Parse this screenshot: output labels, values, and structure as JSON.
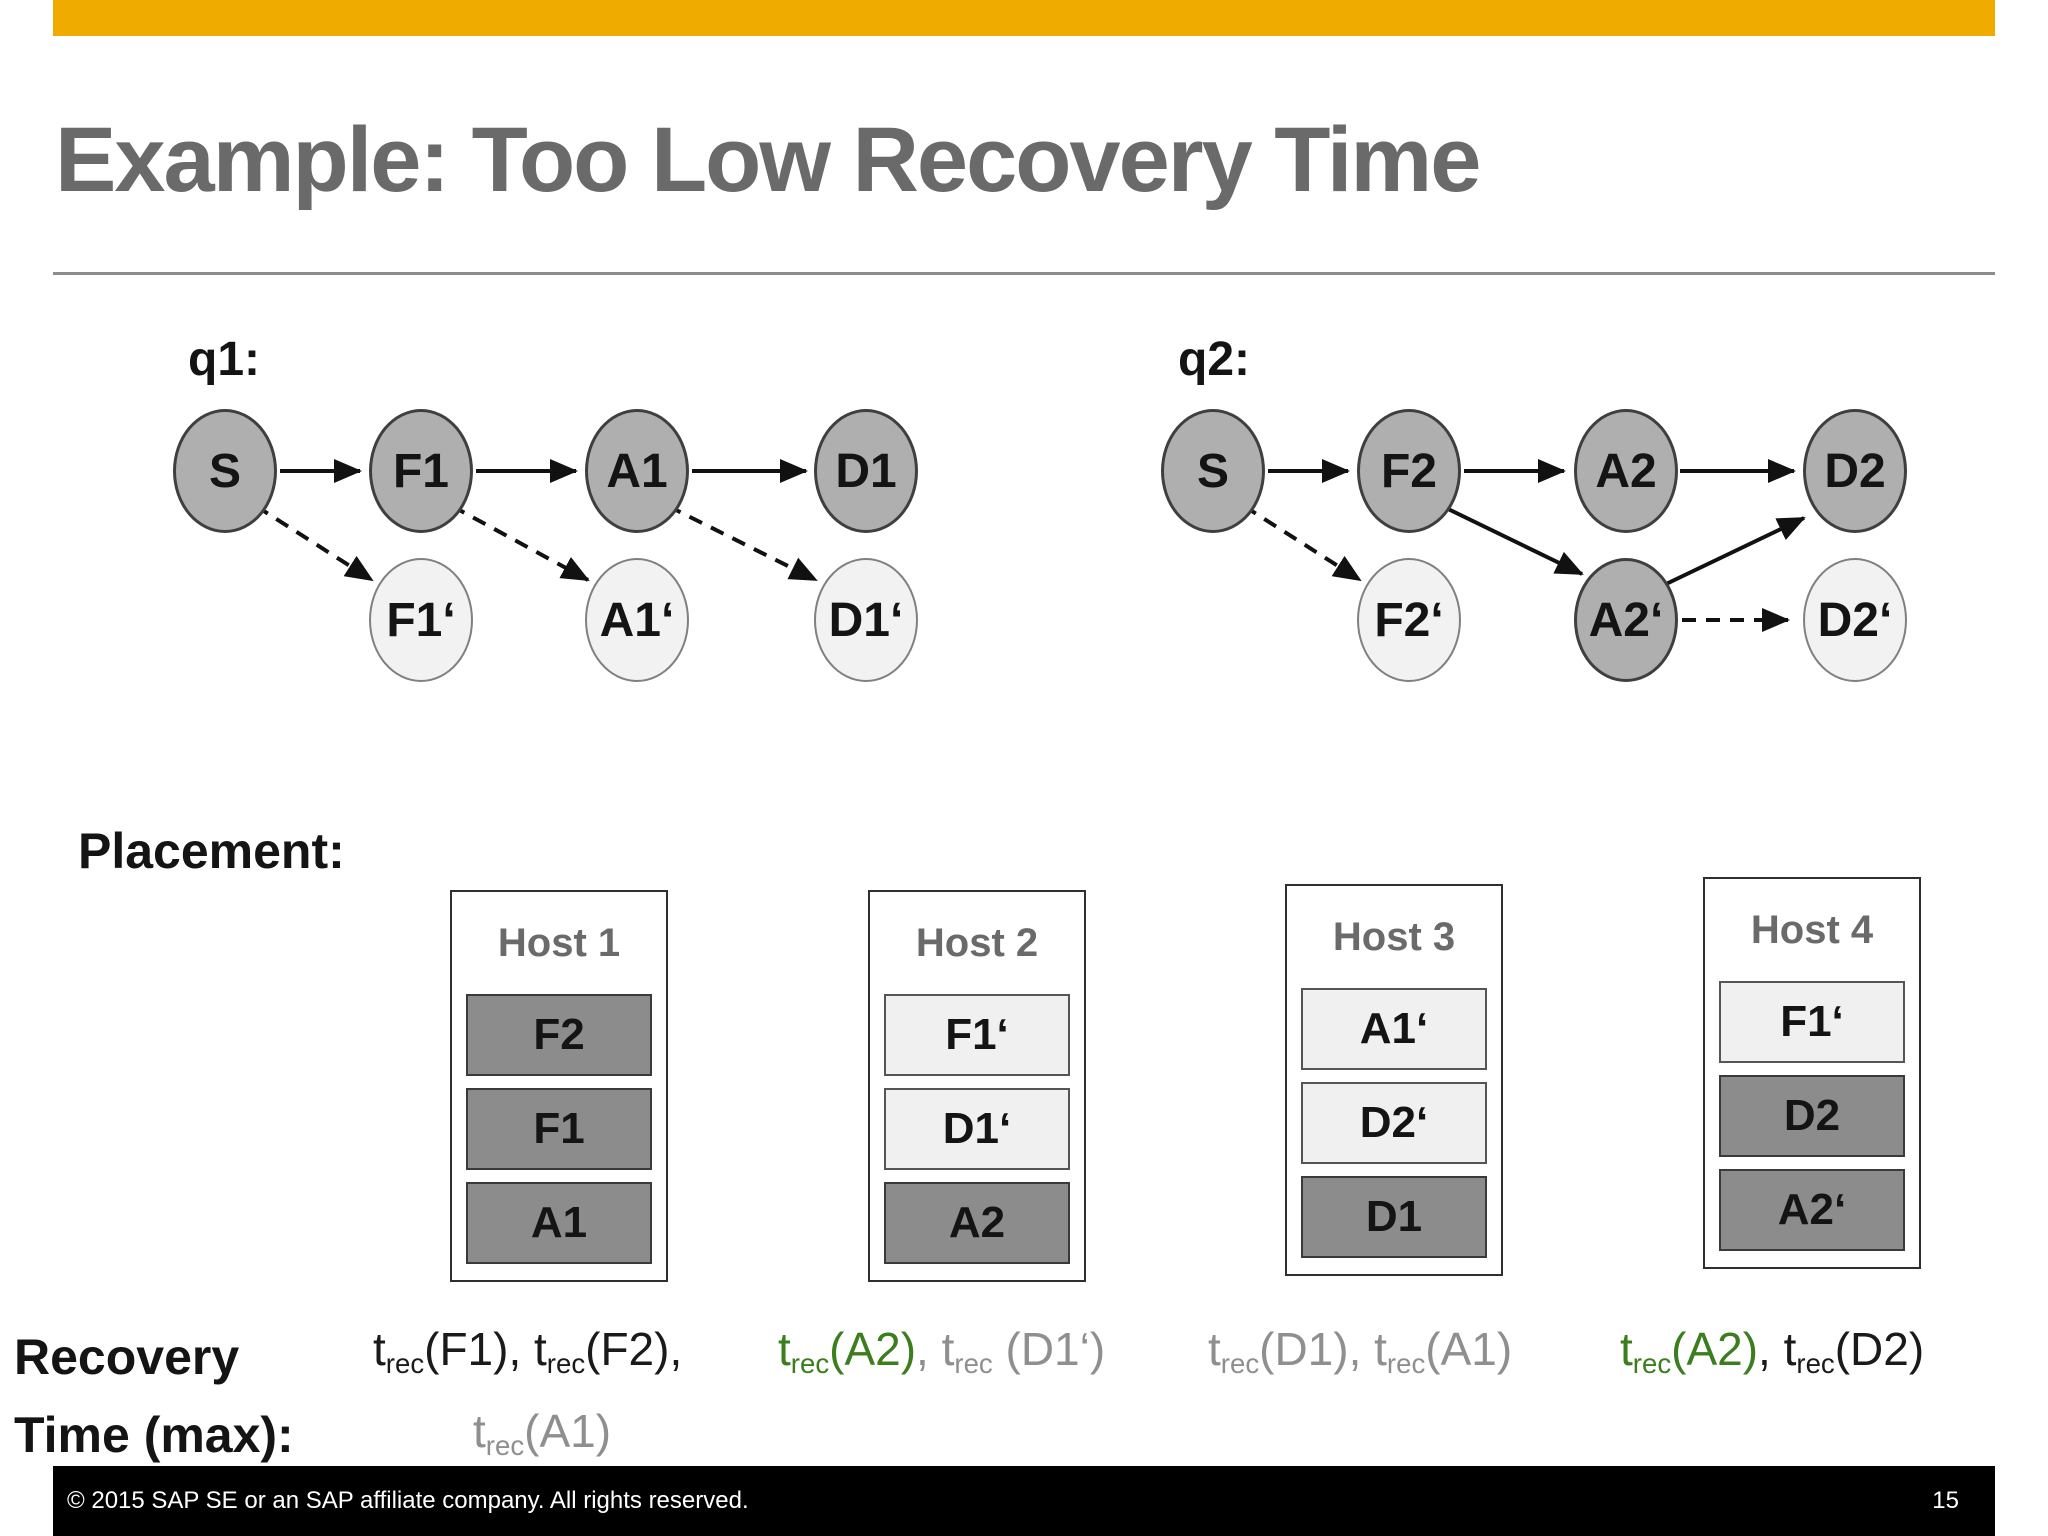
{
  "slide": {
    "title": "Example: Too Low Recovery Time",
    "colors": {
      "accent_gold": "#F0AB00",
      "title_gray": "#6A6A6A",
      "node_dark_fill": "#AFAFAF",
      "node_light_fill": "#F2F2F2",
      "host_item_dark": "#8C8C8C",
      "host_item_light": "#F0F0F0",
      "recovery_green": "#3C7D1E",
      "recovery_gray": "#8F8F8F",
      "footer_bg": "#000000"
    }
  },
  "graphs": {
    "q1": {
      "label": "q1:",
      "nodes": [
        {
          "id": "S",
          "label": "S",
          "variant": "dark"
        },
        {
          "id": "F1",
          "label": "F1",
          "variant": "dark"
        },
        {
          "id": "A1",
          "label": "A1",
          "variant": "dark"
        },
        {
          "id": "D1",
          "label": "D1",
          "variant": "dark"
        },
        {
          "id": "F1p",
          "label": "F1‘",
          "variant": "light"
        },
        {
          "id": "A1p",
          "label": "A1‘",
          "variant": "light"
        },
        {
          "id": "D1p",
          "label": "D1‘",
          "variant": "light"
        }
      ],
      "edges": [
        {
          "from": "S",
          "to": "F1",
          "style": "solid"
        },
        {
          "from": "F1",
          "to": "A1",
          "style": "solid"
        },
        {
          "from": "A1",
          "to": "D1",
          "style": "solid"
        },
        {
          "from": "S",
          "to": "F1p",
          "style": "dashed"
        },
        {
          "from": "F1",
          "to": "A1p",
          "style": "dashed"
        },
        {
          "from": "A1",
          "to": "D1p",
          "style": "dashed"
        }
      ]
    },
    "q2": {
      "label": "q2:",
      "nodes": [
        {
          "id": "S",
          "label": "S",
          "variant": "dark"
        },
        {
          "id": "F2",
          "label": "F2",
          "variant": "dark"
        },
        {
          "id": "A2",
          "label": "A2",
          "variant": "dark"
        },
        {
          "id": "D2",
          "label": "D2",
          "variant": "dark"
        },
        {
          "id": "F2p",
          "label": "F2‘",
          "variant": "light"
        },
        {
          "id": "A2p",
          "label": "A2‘",
          "variant": "dark"
        },
        {
          "id": "D2p",
          "label": "D2‘",
          "variant": "light"
        }
      ],
      "edges": [
        {
          "from": "S",
          "to": "F2",
          "style": "solid"
        },
        {
          "from": "F2",
          "to": "A2",
          "style": "solid"
        },
        {
          "from": "A2",
          "to": "D2",
          "style": "solid"
        },
        {
          "from": "S",
          "to": "F2p",
          "style": "dashed"
        },
        {
          "from": "F2",
          "to": "A2p",
          "style": "solid"
        },
        {
          "from": "A2p",
          "to": "D2",
          "style": "solid"
        },
        {
          "from": "A2p",
          "to": "D2p",
          "style": "dashed"
        }
      ]
    }
  },
  "placement": {
    "label": "Placement:",
    "hosts": [
      {
        "title": "Host 1",
        "items": [
          {
            "label": "F2",
            "variant": "dark"
          },
          {
            "label": "F1",
            "variant": "dark"
          },
          {
            "label": "A1",
            "variant": "dark"
          }
        ]
      },
      {
        "title": "Host 2",
        "items": [
          {
            "label": "F1‘",
            "variant": "light"
          },
          {
            "label": "D1‘",
            "variant": "light"
          },
          {
            "label": "A2",
            "variant": "dark"
          }
        ]
      },
      {
        "title": "Host 3",
        "items": [
          {
            "label": "A1‘",
            "variant": "light"
          },
          {
            "label": "D2‘",
            "variant": "light"
          },
          {
            "label": "D1",
            "variant": "dark"
          }
        ]
      },
      {
        "title": "Host 4",
        "items": [
          {
            "label": "F1‘",
            "variant": "light"
          },
          {
            "label": "D2",
            "variant": "dark"
          },
          {
            "label": "A2‘",
            "variant": "dark"
          }
        ]
      }
    ]
  },
  "recovery": {
    "label_line1": "Recovery",
    "label_line2": "Time (max):",
    "groups": [
      {
        "name": "host1-row1",
        "tokens": [
          {
            "t": "t",
            "tone": "black"
          },
          {
            "t": "rec",
            "sub": true,
            "tone": "black"
          },
          {
            "t": "(F1), t",
            "tone": "black"
          },
          {
            "t": "rec",
            "sub": true,
            "tone": "black"
          },
          {
            "t": "(F2),",
            "tone": "black"
          }
        ]
      },
      {
        "name": "host2-row1",
        "tokens": [
          {
            "t": "t",
            "tone": "green"
          },
          {
            "t": "rec",
            "sub": true,
            "tone": "green"
          },
          {
            "t": "(A2)",
            "tone": "green"
          },
          {
            "t": ", t",
            "tone": "gray"
          },
          {
            "t": "rec",
            "sub": true,
            "tone": "gray"
          },
          {
            "t": " (D1‘)",
            "tone": "gray"
          }
        ]
      },
      {
        "name": "host3-row1",
        "tokens": [
          {
            "t": "t",
            "tone": "gray"
          },
          {
            "t": "rec",
            "sub": true,
            "tone": "gray"
          },
          {
            "t": "(D1), t",
            "tone": "gray"
          },
          {
            "t": "rec",
            "sub": true,
            "tone": "gray"
          },
          {
            "t": "(A1)",
            "tone": "gray"
          }
        ]
      },
      {
        "name": "host4-row1",
        "tokens": [
          {
            "t": "t",
            "tone": "green"
          },
          {
            "t": "rec",
            "sub": true,
            "tone": "green"
          },
          {
            "t": "(A2)",
            "tone": "green"
          },
          {
            "t": ", t",
            "tone": "black"
          },
          {
            "t": "rec",
            "sub": true,
            "tone": "black"
          },
          {
            "t": "(D2)",
            "tone": "black"
          }
        ]
      },
      {
        "name": "host1-row2",
        "tokens": [
          {
            "t": "t",
            "tone": "gray"
          },
          {
            "t": "rec",
            "sub": true,
            "tone": "gray"
          },
          {
            "t": "(A1)",
            "tone": "gray"
          }
        ]
      }
    ]
  },
  "footer": {
    "copyright": "© 2015 SAP SE or an SAP affiliate company. All rights reserved.",
    "page_number": "15"
  }
}
